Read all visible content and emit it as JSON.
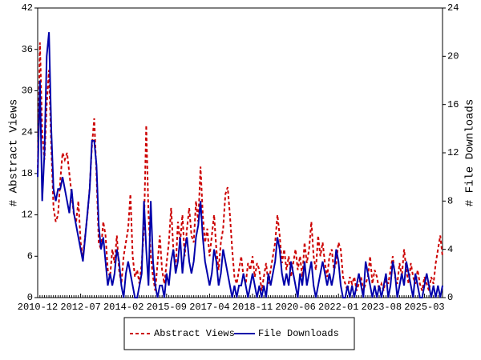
{
  "chart_data": {
    "type": "line",
    "categories": [
      "2010-12",
      null,
      null,
      null,
      null,
      null,
      null,
      null,
      null,
      null,
      null,
      null,
      null,
      null,
      null,
      null,
      null,
      null,
      null,
      "2012-07",
      null,
      null,
      null,
      null,
      null,
      null,
      null,
      null,
      null,
      null,
      null,
      null,
      null,
      null,
      null,
      null,
      null,
      null,
      "2014-02",
      null,
      null,
      null,
      null,
      null,
      null,
      null,
      null,
      null,
      null,
      null,
      null,
      null,
      null,
      null,
      null,
      null,
      null,
      "2015-09",
      null,
      null,
      null,
      null,
      null,
      null,
      null,
      null,
      null,
      null,
      null,
      null,
      null,
      null,
      null,
      null,
      null,
      null,
      "2017-04",
      null,
      null,
      null,
      null,
      null,
      null,
      null,
      null,
      null,
      null,
      null,
      null,
      null,
      null,
      null,
      null,
      null,
      null,
      "2018-11",
      null,
      null,
      null,
      null,
      null,
      null,
      null,
      null,
      null,
      null,
      null,
      null,
      null,
      null,
      null,
      null,
      null,
      null,
      "2020-06",
      null,
      null,
      null,
      null,
      null,
      null,
      null,
      null,
      null,
      null,
      null,
      null,
      null,
      null,
      null,
      null,
      null,
      null,
      "2022-01",
      null,
      null,
      null,
      null,
      null,
      null,
      null,
      null,
      null,
      null,
      null,
      null,
      null,
      null,
      null,
      null,
      null,
      null,
      "2023-08",
      null,
      null,
      null,
      null,
      null,
      null,
      null,
      null,
      null,
      null,
      null,
      null,
      null,
      null,
      null,
      null,
      null,
      null,
      "2025-03",
      null,
      null,
      null,
      null,
      null,
      null,
      null,
      null
    ],
    "series": [
      {
        "name": "Abstract Views",
        "color": "#cc0000",
        "dash": true,
        "values": [
          18,
          37,
          24,
          20,
          28,
          33,
          22,
          13,
          11,
          12,
          17,
          21,
          20,
          21,
          18,
          15,
          12,
          11,
          14,
          8,
          6,
          9,
          12,
          16,
          22,
          26,
          18,
          8,
          7,
          11,
          9,
          4,
          3,
          7,
          5,
          9,
          4,
          2,
          6,
          8,
          10,
          15,
          6,
          3,
          4,
          2,
          5,
          10,
          25,
          12,
          6,
          3,
          1,
          5,
          9,
          4,
          2,
          5,
          8,
          13,
          7,
          4,
          11,
          8,
          12,
          6,
          10,
          13,
          9,
          8,
          14,
          11,
          19,
          12,
          8,
          10,
          6,
          9,
          12,
          7,
          4,
          8,
          10,
          15,
          16,
          12,
          7,
          3,
          2,
          4,
          6,
          3,
          2,
          5,
          4,
          6,
          3,
          5,
          4,
          1,
          3,
          5,
          2,
          4,
          6,
          8,
          12,
          9,
          5,
          7,
          4,
          6,
          3,
          5,
          7,
          4,
          6,
          3,
          8,
          5,
          7,
          11,
          6,
          4,
          9,
          6,
          8,
          5,
          3,
          6,
          7,
          4,
          5,
          8,
          7,
          3,
          2,
          1,
          3,
          2,
          3,
          1,
          2,
          3,
          1,
          2,
          3,
          6,
          2,
          4,
          3,
          1,
          2,
          1,
          3,
          2,
          4,
          6,
          3,
          2,
          5,
          3,
          7,
          4,
          2,
          5,
          3,
          2,
          4,
          2,
          1,
          3,
          2,
          1,
          3,
          2,
          5,
          7,
          9,
          6
        ]
      },
      {
        "name": "File Downloads",
        "color": "#0000aa",
        "axis": "y2",
        "values": [
          10,
          18,
          8,
          12,
          20,
          22,
          14,
          9,
          8,
          9,
          9,
          10,
          9,
          8,
          7,
          9,
          7,
          6,
          5,
          4,
          3,
          5,
          7,
          9,
          13,
          13,
          11,
          6,
          4,
          5,
          3,
          1,
          2,
          1,
          2,
          4,
          3,
          1,
          0,
          2,
          3,
          2,
          1,
          0,
          0,
          1,
          2,
          8,
          4,
          1,
          8,
          3,
          1,
          0,
          1,
          1,
          0,
          2,
          1,
          3,
          4,
          2,
          3,
          5,
          2,
          4,
          5,
          3,
          2,
          3,
          5,
          6,
          8,
          5,
          3,
          2,
          1,
          2,
          4,
          3,
          1,
          2,
          4,
          3,
          2,
          1,
          0,
          1,
          0,
          1,
          1,
          2,
          1,
          0,
          1,
          2,
          1,
          0,
          1,
          0,
          1,
          0,
          2,
          1,
          2,
          3,
          5,
          4,
          2,
          1,
          2,
          1,
          3,
          2,
          1,
          0,
          2,
          1,
          3,
          1,
          2,
          3,
          1,
          0,
          1,
          2,
          3,
          2,
          1,
          2,
          1,
          2,
          4,
          3,
          1,
          0,
          0,
          1,
          0,
          1,
          0,
          1,
          2,
          1,
          0,
          3,
          2,
          1,
          0,
          1,
          0,
          1,
          0,
          1,
          2,
          0,
          1,
          3,
          2,
          0,
          1,
          2,
          1,
          3,
          2,
          1,
          0,
          2,
          1,
          0,
          0,
          1,
          2,
          1,
          0,
          1,
          0,
          1,
          0,
          1
        ]
      }
    ],
    "y_label": "# Abstract Views",
    "y2_label": "# File Downloads",
    "ylim": [
      0,
      42
    ],
    "yticks": [
      0,
      6,
      12,
      18,
      24,
      30,
      36,
      42
    ],
    "y2lim": [
      0,
      24
    ],
    "y2ticks": [
      0,
      4,
      8,
      12,
      16,
      20,
      24
    ],
    "legend": "bottom"
  }
}
